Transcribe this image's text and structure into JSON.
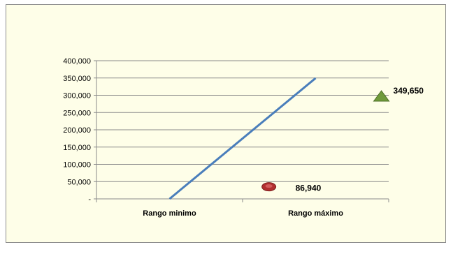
{
  "chart_data": {
    "type": "line",
    "title": "",
    "xlabel": "",
    "ylabel": "",
    "categories": [
      "Rango minimo",
      "Rango máximo"
    ],
    "ylim": [
      0,
      400000
    ],
    "y_ticks": [
      0,
      50000,
      100000,
      150000,
      200000,
      250000,
      300000,
      350000,
      400000
    ],
    "y_tick_labels": [
      "-",
      "50,000",
      "100,000",
      "150,000",
      "200,000",
      "250,000",
      "300,000",
      "350,000",
      "400,000"
    ],
    "grid": true,
    "legend": "none",
    "series": [
      {
        "kind": "line",
        "color": "#4a7ebb",
        "points": [
          {
            "x": 0.5,
            "y": 0
          },
          {
            "x": 1.5,
            "y": 349650
          }
        ]
      },
      {
        "kind": "marker",
        "marker": "ellipse",
        "color": "#b22f2f",
        "points": [
          {
            "x": 1.18,
            "y": 35000
          }
        ],
        "label": "86,940"
      },
      {
        "kind": "marker",
        "marker": "triangle",
        "color": "#6f9a3a",
        "points": [
          {
            "x": 1.95,
            "y": 297000
          }
        ],
        "label": "349,650"
      }
    ]
  }
}
